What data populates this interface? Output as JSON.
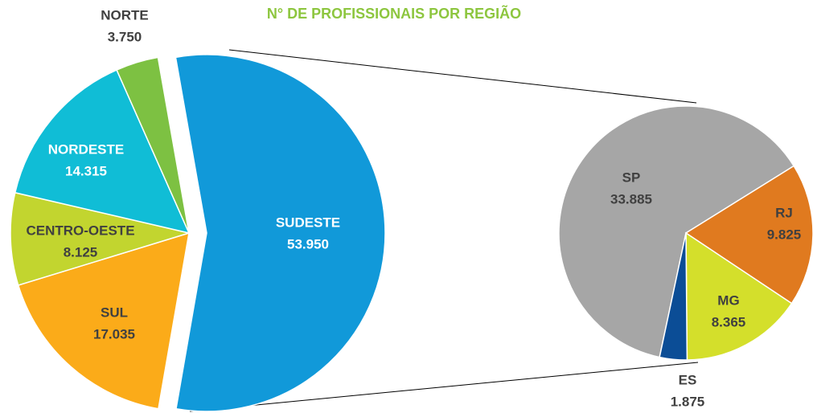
{
  "chart_data": [
    {
      "type": "pie",
      "title": "N° DE PROFISSIONAIS POR REGIÃO",
      "categories": [
        "SUDESTE",
        "SUL",
        "CENTRO-OESTE",
        "NORDESTE",
        "NORTE"
      ],
      "values": [
        53950,
        17035,
        8125,
        14315,
        3750
      ],
      "value_labels": [
        "53.950",
        "17.035",
        "8.125",
        "14.315",
        "3.750"
      ],
      "colors": [
        "#1199d9",
        "#fbab19",
        "#c2d52f",
        "#10bdd6",
        "#7dc142"
      ]
    },
    {
      "type": "pie",
      "categories": [
        "SP",
        "RJ",
        "MG",
        "ES"
      ],
      "values": [
        33885,
        9825,
        8365,
        1875
      ],
      "value_labels": [
        "33.885",
        "9.825",
        "8.365",
        "1.875"
      ],
      "colors": [
        "#a6a6a6",
        "#e07a1f",
        "#d4df2b",
        "#0b4d96"
      ]
    }
  ]
}
